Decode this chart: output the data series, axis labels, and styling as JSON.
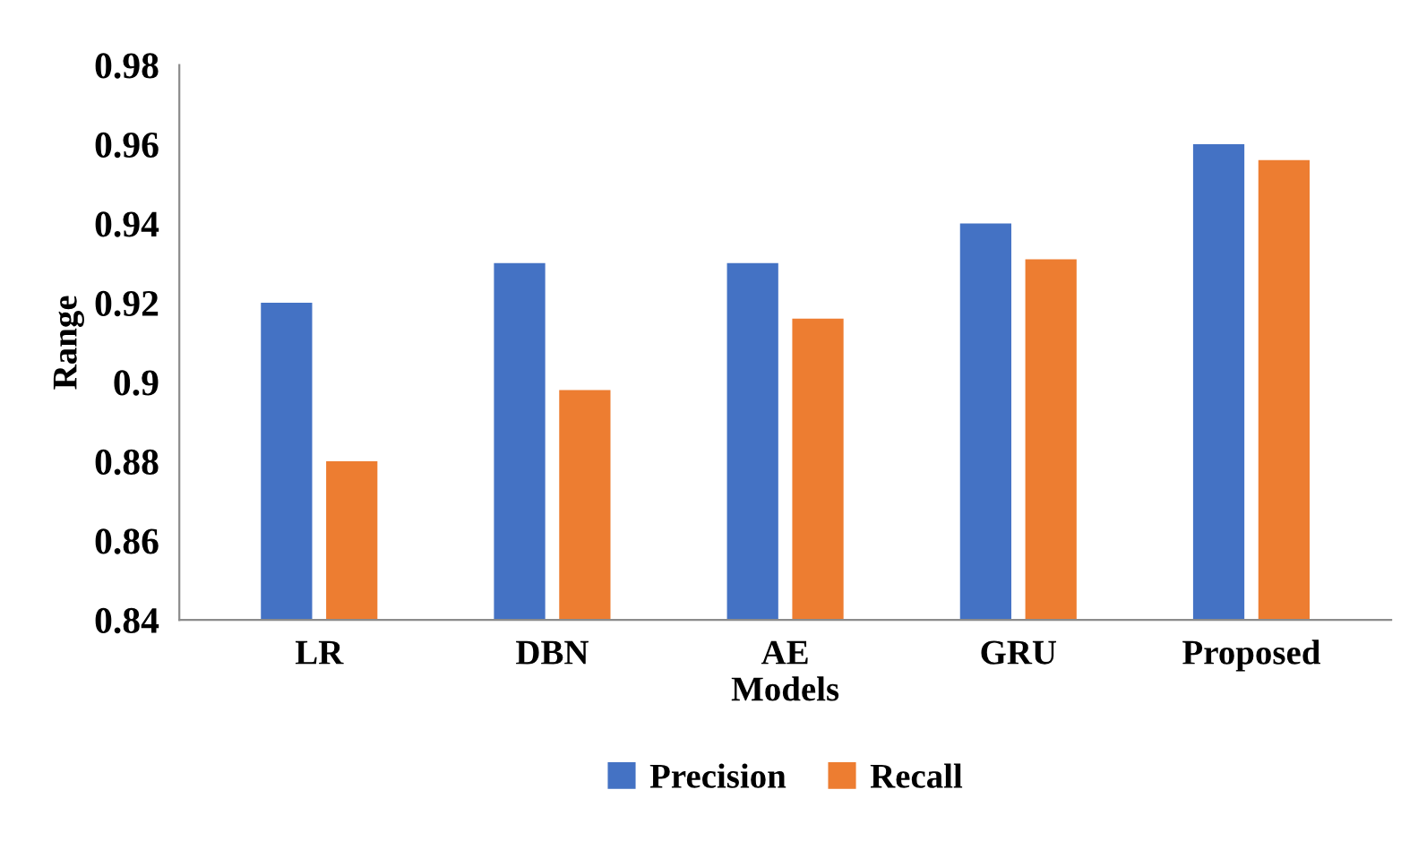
{
  "chart_data": {
    "type": "bar",
    "xlabel": "Models",
    "ylabel": "Range",
    "categories": [
      "LR",
      "DBN",
      "AE",
      "GRU",
      "Proposed"
    ],
    "series": [
      {
        "name": "Precision",
        "color": "#4472c4",
        "values": [
          0.92,
          0.93,
          0.93,
          0.94,
          0.96
        ]
      },
      {
        "name": "Recall",
        "color": "#ed7d31",
        "values": [
          0.88,
          0.898,
          0.916,
          0.931,
          0.956
        ]
      }
    ],
    "ylim": [
      0.84,
      0.98
    ],
    "yticks": [
      0.84,
      0.86,
      0.88,
      0.9,
      0.92,
      0.94,
      0.96,
      0.98
    ],
    "grid": false,
    "legend": "bottom"
  }
}
